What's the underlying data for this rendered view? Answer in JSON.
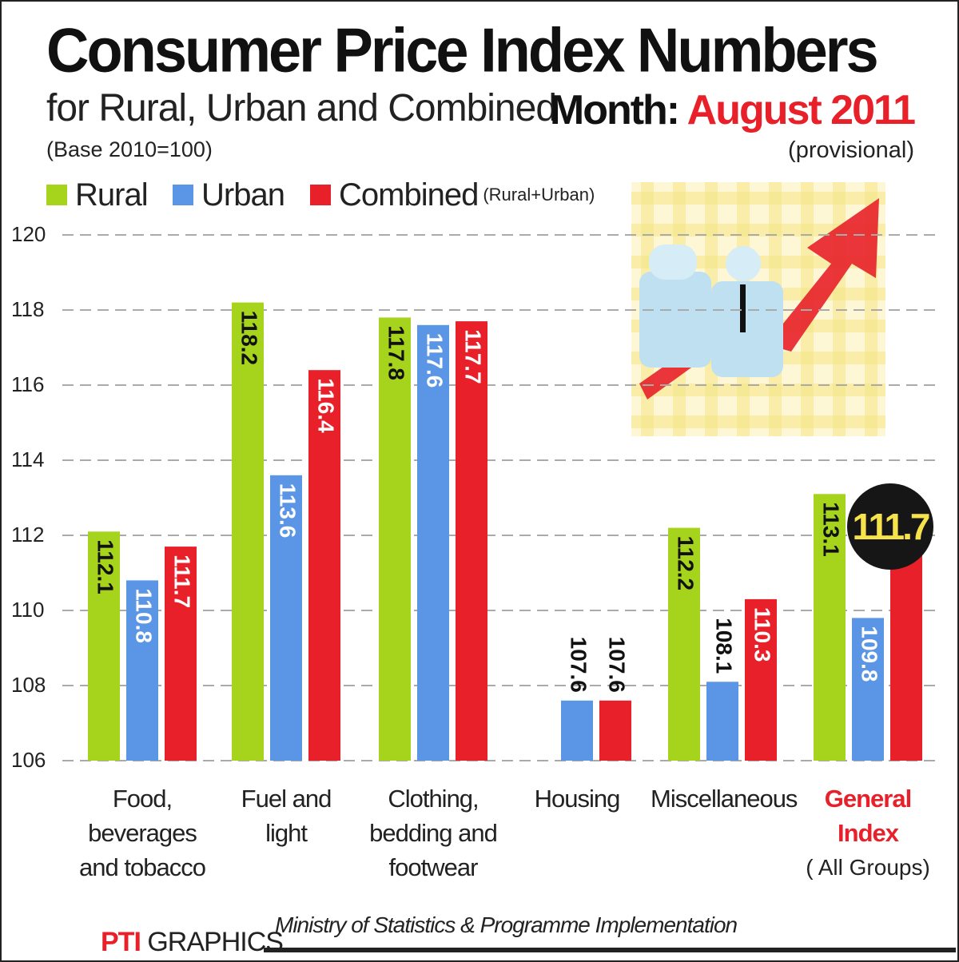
{
  "header": {
    "title": "Consumer Price Index Numbers",
    "subtitle": "for Rural, Urban and Combined",
    "base_note": "(Base 2010=100)",
    "month_label": "Month:",
    "month_value": "August 2011",
    "provisional_note": "(provisional)"
  },
  "legend": {
    "rural": "Rural",
    "urban": "Urban",
    "combined": "Combined",
    "combined_note": "(Rural+Urban)"
  },
  "highlight": {
    "general_index_combined": "111.7"
  },
  "footer": {
    "source": "Ministry of Statistics & Programme Implementation",
    "credit_a": "PTI",
    "credit_b": "GRAPHICS"
  },
  "colors": {
    "rural": "#a6d41c",
    "urban": "#5b95e6",
    "combined": "#e8202a",
    "highlight_text": "#e8202a",
    "gridline": "#aaaaaa"
  },
  "chart_data": {
    "type": "bar",
    "ylim": [
      106,
      120
    ],
    "yticks": [
      "106",
      "108",
      "110",
      "112",
      "114",
      "116",
      "118",
      "120"
    ],
    "categories": [
      {
        "lines": [
          "Food,",
          "beverages",
          "and tobacco"
        ],
        "sub": "",
        "highlight": false
      },
      {
        "lines": [
          "Fuel and",
          "light"
        ],
        "sub": "",
        "highlight": false
      },
      {
        "lines": [
          "Clothing,",
          "bedding and",
          "footwear"
        ],
        "sub": "",
        "highlight": false
      },
      {
        "lines": [
          "Housing"
        ],
        "sub": "",
        "highlight": false
      },
      {
        "lines": [
          "Miscellaneous"
        ],
        "sub": "",
        "highlight": false
      },
      {
        "lines": [
          "General",
          "Index"
        ],
        "sub": "( All Groups)",
        "highlight": true
      }
    ],
    "series": [
      {
        "name": "Rural",
        "values": [
          112.1,
          118.2,
          117.8,
          null,
          112.2,
          113.1
        ],
        "labels": [
          "112.1",
          "118.2",
          "117.8",
          "",
          "112.2",
          "113.1"
        ]
      },
      {
        "name": "Urban",
        "values": [
          110.8,
          113.6,
          117.6,
          107.6,
          108.1,
          109.8
        ],
        "labels": [
          "110.8",
          "113.6",
          "117.6",
          "107.6",
          "108.1",
          "109.8"
        ]
      },
      {
        "name": "Combined",
        "values": [
          111.7,
          116.4,
          117.7,
          107.6,
          110.3,
          111.7
        ],
        "labels": [
          "111.7",
          "116.4",
          "117.7",
          "107.6",
          "110.3",
          ""
        ]
      }
    ]
  }
}
